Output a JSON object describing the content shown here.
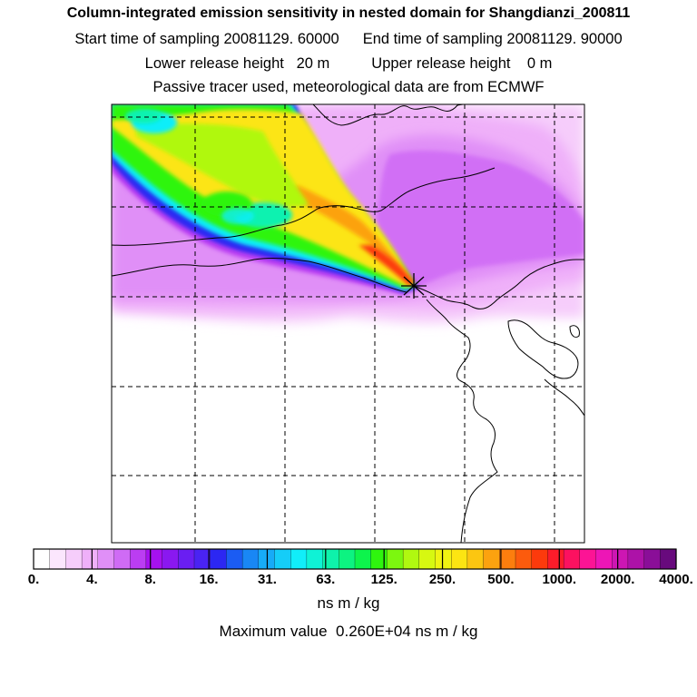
{
  "header": {
    "title": "Column-integrated emission sensitivity in nested domain for Shangdianzi_200811",
    "start_label": "Start time of sampling 20081129. 60000",
    "end_label": "End time of sampling 20081129. 90000",
    "lower_label": "Lower release height   20 m",
    "upper_label": "Upper release height    0 m",
    "note": "Passive tracer used, meteorological data are from ECMWF"
  },
  "colorbar": {
    "ticks": [
      "0.",
      "4.",
      "8.",
      "16.",
      "31.",
      "63.",
      "125.",
      "250.",
      "500.",
      "1000.",
      "2000.",
      "4000."
    ],
    "colors": [
      "#ffffff",
      "#fbe6fd",
      "#f6cdfb",
      "#efb0f9",
      "#e08ff7",
      "#cf6bf5",
      "#bb3df2",
      "#a611ef",
      "#8a18f0",
      "#6a1ef2",
      "#4a23f3",
      "#2c27f2",
      "#1b5cf3",
      "#1987f5",
      "#17abf7",
      "#15cdf8",
      "#11eef9",
      "#0ff2d6",
      "#0ef2ab",
      "#0df381",
      "#0df44c",
      "#2ff50e",
      "#7cf70f",
      "#b0f810",
      "#d7f811",
      "#f0f312",
      "#fce512",
      "#fcc611",
      "#fca20f",
      "#fc7e0e",
      "#fc5b0d",
      "#fc3a0c",
      "#fc1c2a",
      "#fc1160",
      "#fc1495",
      "#ed16b6",
      "#cd16b3",
      "#ad12a8",
      "#8a0e98",
      "#680a7d"
    ],
    "units": "ns m / kg",
    "max_label": "Maximum value  0.260E+04 ns m / kg"
  },
  "map": {
    "release_marker": "Shangdianzi",
    "colors": {
      "background": "#ffffff",
      "pink_light": "#f6cdfb",
      "pink": "#efb0f9",
      "lilac": "#e08ff7",
      "violet": "#cf6bf5",
      "purple": "#bb3df2",
      "blue": "#2c27f2",
      "cyan": "#11eef9",
      "teal": "#0ff2b0",
      "green": "#2ff50e",
      "lime": "#b0f810",
      "yellow": "#fce512",
      "orange": "#fca20f",
      "red": "#fc3a0c"
    }
  }
}
